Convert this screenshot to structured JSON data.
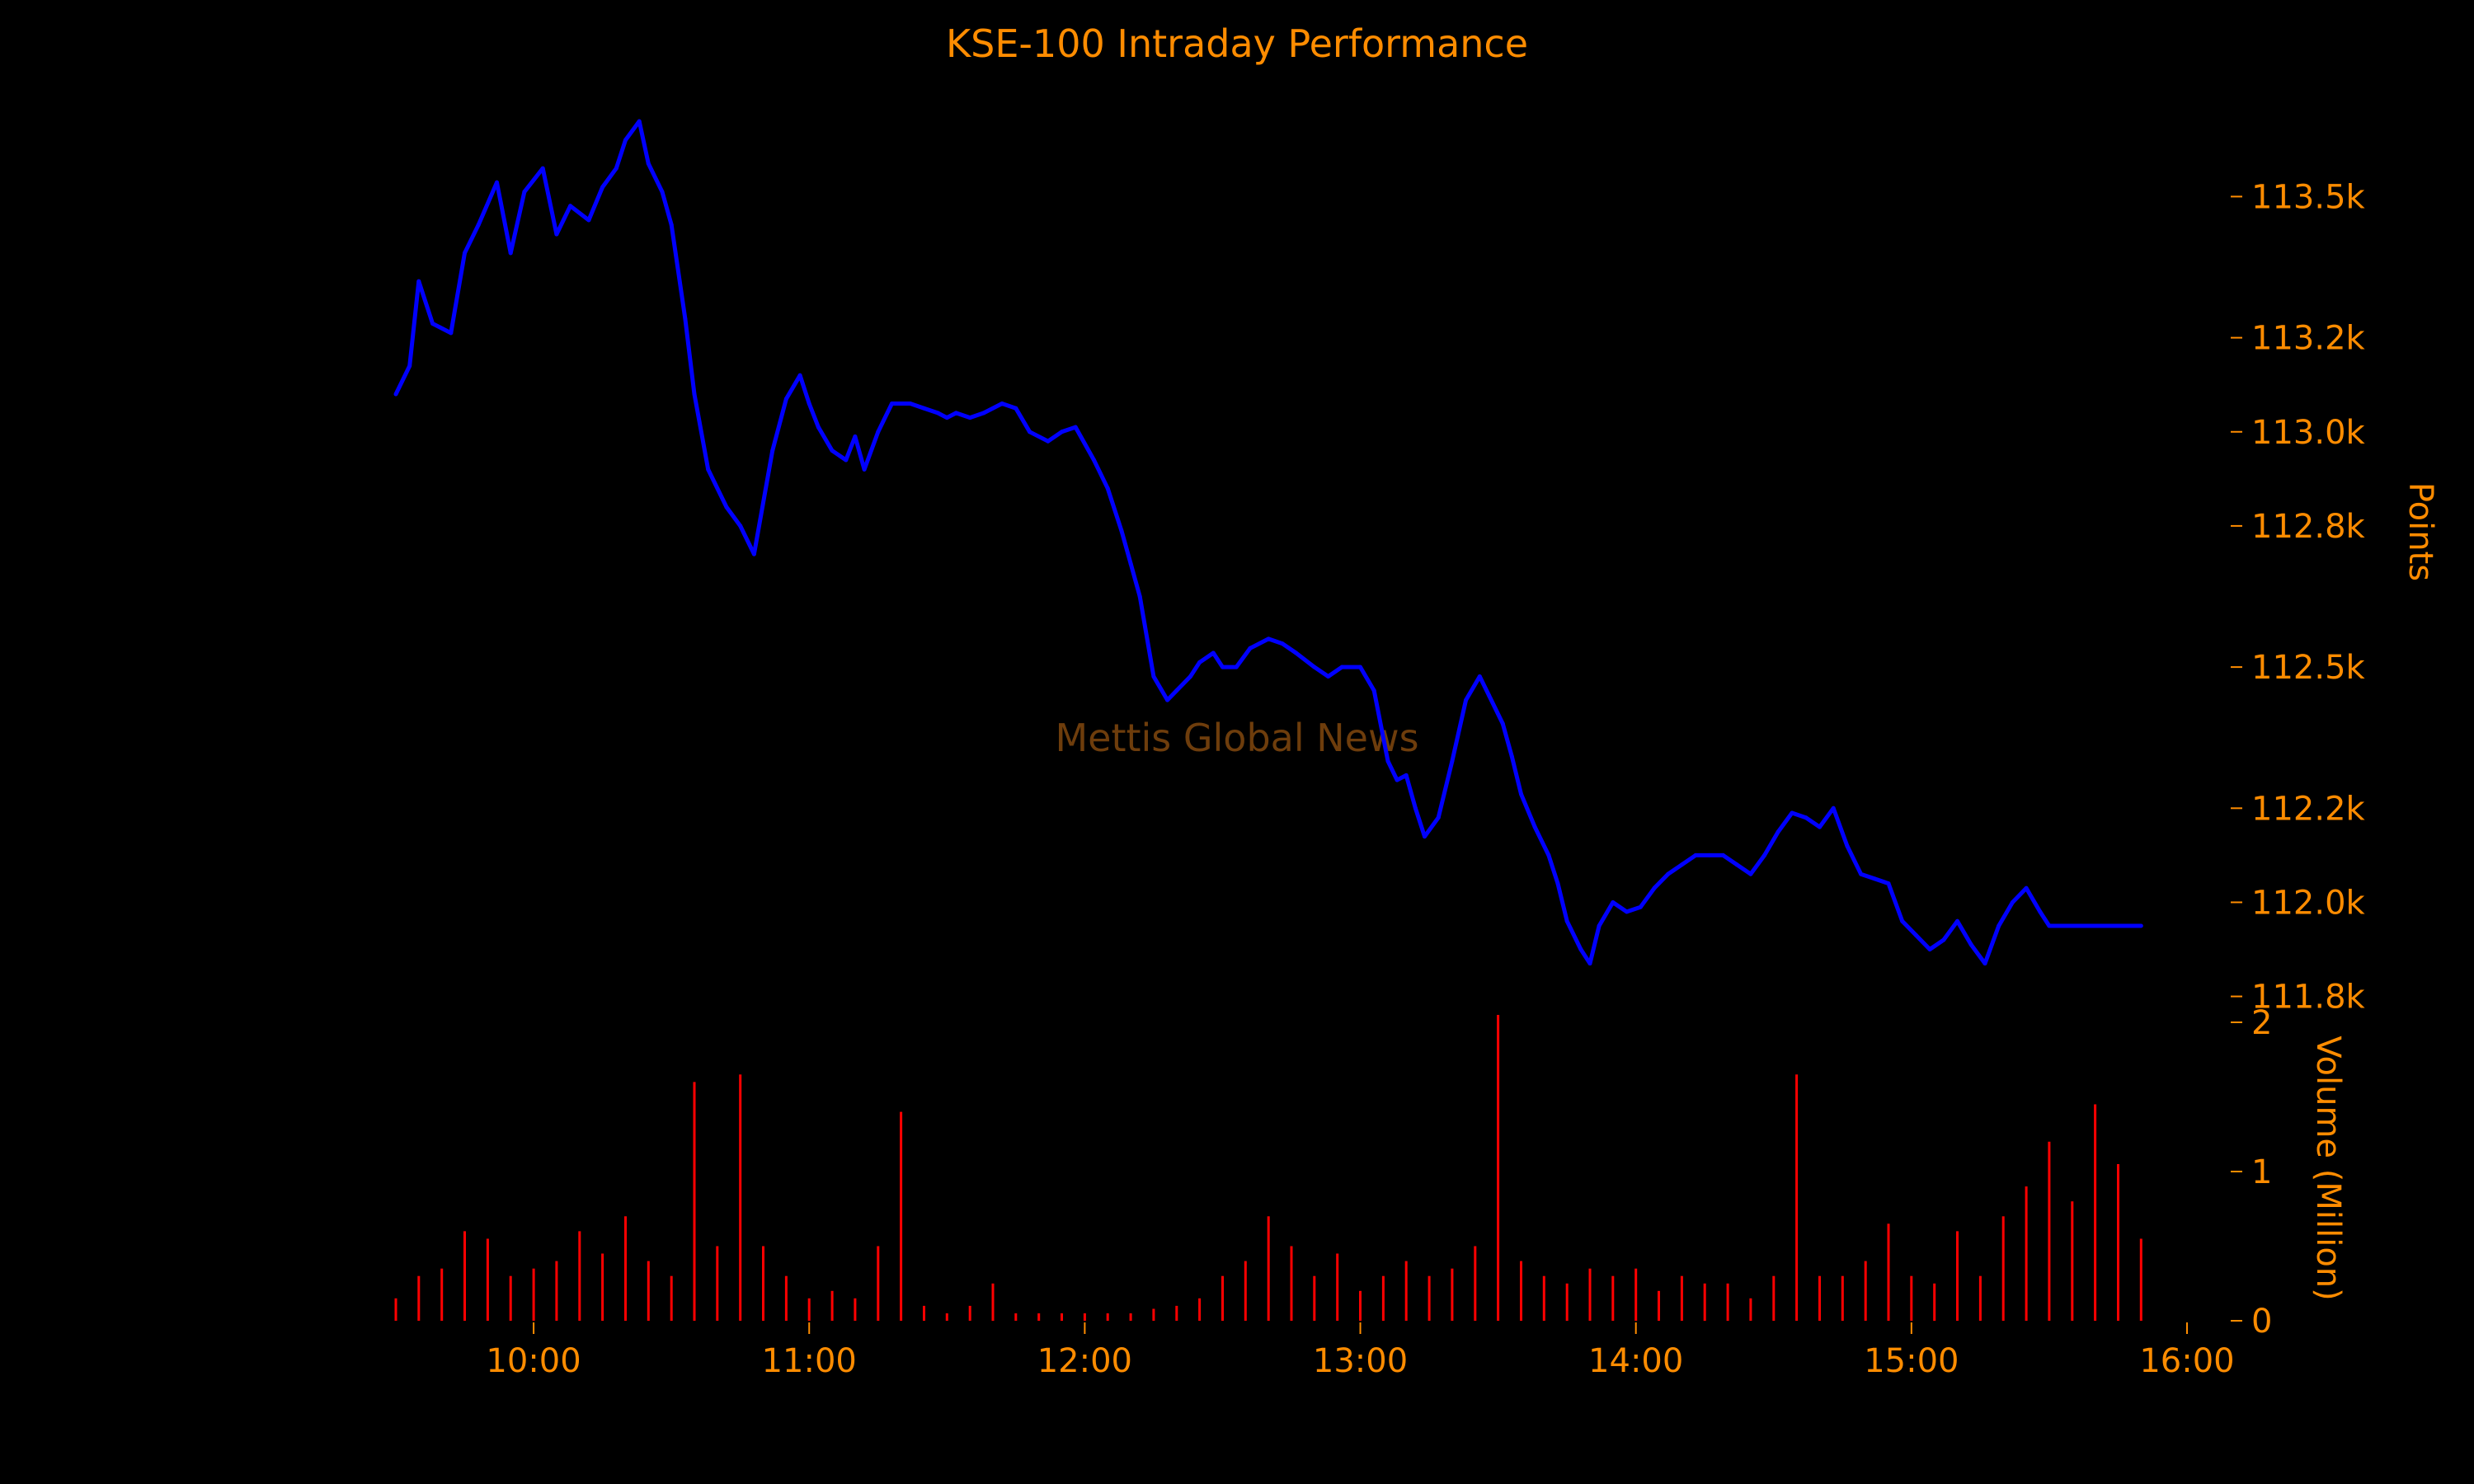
{
  "colors": {
    "background": "#000000",
    "text": "#ff8c00",
    "price_line": "#0000ff",
    "volume_bars": "#ff0000",
    "watermark": "#6e3d0c"
  },
  "chart_data": [
    {
      "type": "line",
      "title": "KSE-100 Intraday Performance",
      "ylabel": "Points",
      "y_axis_position": "right",
      "ylim": [
        111780,
        113690
      ],
      "yticks": [
        111800,
        112000,
        112200,
        112500,
        112800,
        113000,
        113200,
        113500
      ],
      "ytick_labels": [
        "111.8k",
        "112.0k",
        "112.2k",
        "112.5k",
        "112.8k",
        "113.0k",
        "113.2k",
        "113.5k"
      ],
      "watermark": "Mettis Global News",
      "grid": false,
      "series": [
        {
          "color": "#0000ff",
          "x": [
            "09:30",
            "09:33",
            "09:35",
            "09:38",
            "09:42",
            "09:45",
            "09:48",
            "09:52",
            "09:55",
            "09:58",
            "10:02",
            "10:05",
            "10:08",
            "10:12",
            "10:15",
            "10:18",
            "10:20",
            "10:23",
            "10:25",
            "10:28",
            "10:30",
            "10:33",
            "10:35",
            "10:38",
            "10:42",
            "10:45",
            "10:48",
            "10:52",
            "10:55",
            "10:58",
            "11:00",
            "11:02",
            "11:05",
            "11:08",
            "11:10",
            "11:12",
            "11:15",
            "11:18",
            "11:22",
            "11:25",
            "11:28",
            "11:30",
            "11:32",
            "11:35",
            "11:38",
            "11:42",
            "11:45",
            "11:48",
            "11:52",
            "11:55",
            "11:58",
            "12:02",
            "12:05",
            "12:08",
            "12:10",
            "12:12",
            "12:15",
            "12:18",
            "12:20",
            "12:23",
            "12:25",
            "12:28",
            "12:30",
            "12:33",
            "12:36",
            "12:40",
            "12:43",
            "12:46",
            "12:50",
            "12:53",
            "12:56",
            "13:00",
            "13:03",
            "13:06",
            "13:08",
            "13:10",
            "13:12",
            "13:14",
            "13:17",
            "13:20",
            "13:23",
            "13:26",
            "13:28",
            "13:31",
            "13:33",
            "13:35",
            "13:38",
            "13:41",
            "13:43",
            "13:45",
            "13:48",
            "13:50",
            "13:52",
            "13:55",
            "13:58",
            "14:01",
            "14:04",
            "14:07",
            "14:10",
            "14:13",
            "14:16",
            "14:19",
            "14:22",
            "14:25",
            "14:28",
            "14:31",
            "14:34",
            "14:37",
            "14:40",
            "14:43",
            "14:46",
            "14:49",
            "14:52",
            "14:55",
            "14:58",
            "15:01",
            "15:04",
            "15:07",
            "15:10",
            "15:13",
            "15:16",
            "15:19",
            "15:22",
            "15:25",
            "15:28",
            "15:30",
            "15:35",
            "15:40",
            "15:45",
            "15:50"
          ],
          "y": [
            113080,
            113140,
            113320,
            113230,
            113210,
            113380,
            113440,
            113530,
            113380,
            113510,
            113560,
            113420,
            113480,
            113450,
            113520,
            113560,
            113620,
            113660,
            113570,
            113510,
            113440,
            113240,
            113080,
            112920,
            112840,
            112800,
            112740,
            112960,
            113070,
            113120,
            113060,
            113010,
            112960,
            112940,
            112990,
            112920,
            113000,
            113060,
            113060,
            113050,
            113040,
            113030,
            113040,
            113030,
            113040,
            113060,
            113050,
            113000,
            112980,
            113000,
            113010,
            112940,
            112880,
            112790,
            112720,
            112650,
            112480,
            112430,
            112450,
            112480,
            112510,
            112530,
            112500,
            112500,
            112540,
            112560,
            112550,
            112530,
            112500,
            112480,
            112500,
            112500,
            112450,
            112300,
            112260,
            112270,
            112200,
            112140,
            112180,
            112300,
            112430,
            112480,
            112440,
            112380,
            112310,
            112230,
            112160,
            112100,
            112040,
            111960,
            111900,
            111870,
            111950,
            112000,
            111980,
            111990,
            112030,
            112060,
            112080,
            112100,
            112100,
            112100,
            112080,
            112060,
            112100,
            112150,
            112190,
            112180,
            112160,
            112200,
            112120,
            112060,
            112050,
            112040,
            111960,
            111930,
            111900,
            111920,
            111960,
            111910,
            111870,
            111950,
            112000,
            112030,
            111980,
            111950,
            111950,
            111950,
            111950,
            111950
          ]
        }
      ]
    },
    {
      "type": "bar",
      "ylabel": "Volume (Million)",
      "y_axis_position": "right",
      "ylim": [
        0,
        2
      ],
      "yticks": [
        0,
        1,
        2
      ],
      "ytick_labels": [
        "0",
        "1",
        "2"
      ],
      "xlim": [
        "09:30",
        "16:00"
      ],
      "xticks": [
        "10:00",
        "11:00",
        "12:00",
        "13:00",
        "14:00",
        "15:00",
        "16:00"
      ],
      "grid": false,
      "series": [
        {
          "color": "#ff0000",
          "x": [
            "09:30",
            "09:35",
            "09:40",
            "09:45",
            "09:50",
            "09:55",
            "10:00",
            "10:05",
            "10:10",
            "10:15",
            "10:20",
            "10:25",
            "10:30",
            "10:35",
            "10:40",
            "10:45",
            "10:50",
            "10:55",
            "11:00",
            "11:05",
            "11:10",
            "11:15",
            "11:20",
            "11:25",
            "11:30",
            "11:35",
            "11:40",
            "11:45",
            "11:50",
            "11:55",
            "12:00",
            "12:05",
            "12:10",
            "12:15",
            "12:20",
            "12:25",
            "12:30",
            "12:35",
            "12:40",
            "12:45",
            "12:50",
            "12:55",
            "13:00",
            "13:05",
            "13:10",
            "13:15",
            "13:20",
            "13:25",
            "13:30",
            "13:35",
            "13:40",
            "13:45",
            "13:50",
            "13:55",
            "14:00",
            "14:05",
            "14:10",
            "14:15",
            "14:20",
            "14:25",
            "14:30",
            "14:35",
            "14:40",
            "14:45",
            "14:50",
            "14:55",
            "15:00",
            "15:05",
            "15:10",
            "15:15",
            "15:20",
            "15:25",
            "15:30",
            "15:35",
            "15:40",
            "15:45",
            "15:50"
          ],
          "y": [
            0.15,
            0.3,
            0.35,
            0.6,
            0.55,
            0.3,
            0.35,
            0.4,
            0.6,
            0.45,
            0.7,
            0.4,
            0.3,
            1.6,
            0.5,
            1.65,
            0.5,
            0.3,
            0.15,
            0.2,
            0.15,
            0.5,
            1.4,
            0.1,
            0.05,
            0.1,
            0.25,
            0.05,
            0.05,
            0.05,
            0.05,
            0.05,
            0.05,
            0.08,
            0.1,
            0.15,
            0.3,
            0.4,
            0.7,
            0.5,
            0.3,
            0.45,
            0.2,
            0.3,
            0.4,
            0.3,
            0.35,
            0.5,
            2.05,
            0.4,
            0.3,
            0.25,
            0.35,
            0.3,
            0.35,
            0.2,
            0.3,
            0.25,
            0.25,
            0.15,
            0.3,
            1.65,
            0.3,
            0.3,
            0.4,
            0.65,
            0.3,
            0.25,
            0.6,
            0.3,
            0.7,
            0.9,
            1.2,
            0.8,
            1.45,
            1.05,
            0.55
          ]
        }
      ]
    }
  ]
}
